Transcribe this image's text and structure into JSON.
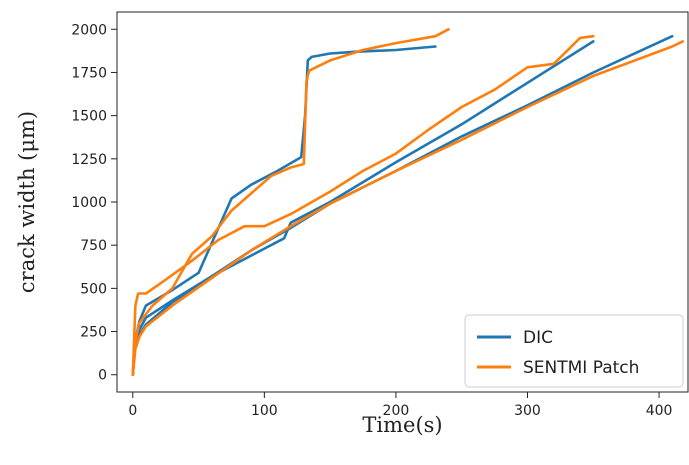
{
  "chart_data": {
    "type": "line",
    "xlabel": "Time(s)",
    "ylabel": "crack width (μm)",
    "xlim": [
      -12,
      422
    ],
    "ylim": [
      -100,
      2100
    ],
    "xticks": [
      0,
      100,
      200,
      300,
      400
    ],
    "yticks": [
      0,
      250,
      500,
      750,
      1000,
      1250,
      1500,
      1750,
      2000
    ],
    "legend": {
      "position": "bottom-right"
    },
    "grid": false,
    "colors": {
      "DIC": "#1f77b4",
      "SENTMI Patch": "#ff7f0e"
    },
    "series": [
      {
        "name": "DIC",
        "label": "DIC",
        "line": 1,
        "color": "#1f77b4",
        "x": [
          0,
          2,
          5,
          10,
          30,
          50,
          75,
          90,
          110,
          128,
          131,
          133,
          136,
          150,
          170,
          200,
          230
        ],
        "y": [
          0,
          200,
          310,
          400,
          490,
          590,
          1020,
          1100,
          1180,
          1260,
          1500,
          1820,
          1840,
          1860,
          1870,
          1880,
          1900
        ]
      },
      {
        "name": "DIC",
        "line": 2,
        "color": "#1f77b4",
        "x": [
          0,
          2,
          5,
          10,
          30,
          60,
          80,
          100,
          115,
          120,
          150,
          200,
          250,
          300,
          350
        ],
        "y": [
          0,
          200,
          260,
          330,
          430,
          570,
          650,
          730,
          790,
          880,
          1000,
          1230,
          1450,
          1690,
          1930
        ]
      },
      {
        "name": "DIC",
        "line": 3,
        "color": "#1f77b4",
        "x": [
          0,
          2,
          5,
          10,
          30,
          60,
          90,
          120,
          150,
          200,
          250,
          300,
          350,
          410
        ],
        "y": [
          0,
          180,
          230,
          290,
          420,
          570,
          720,
          850,
          990,
          1180,
          1380,
          1560,
          1750,
          1960
        ]
      },
      {
        "name": "SENTMI Patch",
        "label": "SENTMI Patch",
        "line": 1,
        "color": "#ff7f0e",
        "x": [
          0,
          2,
          5,
          15,
          30,
          45,
          60,
          75,
          90,
          105,
          120,
          130,
          132,
          134,
          150,
          175,
          200,
          230,
          240
        ],
        "y": [
          0,
          200,
          300,
          400,
          500,
          700,
          800,
          950,
          1050,
          1150,
          1200,
          1220,
          1700,
          1760,
          1820,
          1880,
          1920,
          1960,
          2000
        ]
      },
      {
        "name": "SENTMI Patch",
        "line": 2,
        "color": "#ff7f0e",
        "x": [
          0,
          2,
          4,
          10,
          25,
          45,
          65,
          85,
          100,
          120,
          150,
          175,
          200,
          225,
          250,
          275,
          300,
          320,
          340,
          350
        ],
        "y": [
          0,
          400,
          470,
          470,
          550,
          660,
          780,
          860,
          860,
          930,
          1060,
          1180,
          1280,
          1420,
          1550,
          1650,
          1780,
          1800,
          1950,
          1960
        ]
      },
      {
        "name": "SENTMI Patch",
        "line": 3,
        "color": "#ff7f0e",
        "x": [
          0,
          2,
          5,
          10,
          30,
          60,
          90,
          120,
          150,
          200,
          250,
          300,
          350,
          410,
          418
        ],
        "y": [
          0,
          150,
          220,
          280,
          400,
          560,
          720,
          860,
          990,
          1180,
          1360,
          1550,
          1730,
          1900,
          1930
        ]
      }
    ]
  }
}
